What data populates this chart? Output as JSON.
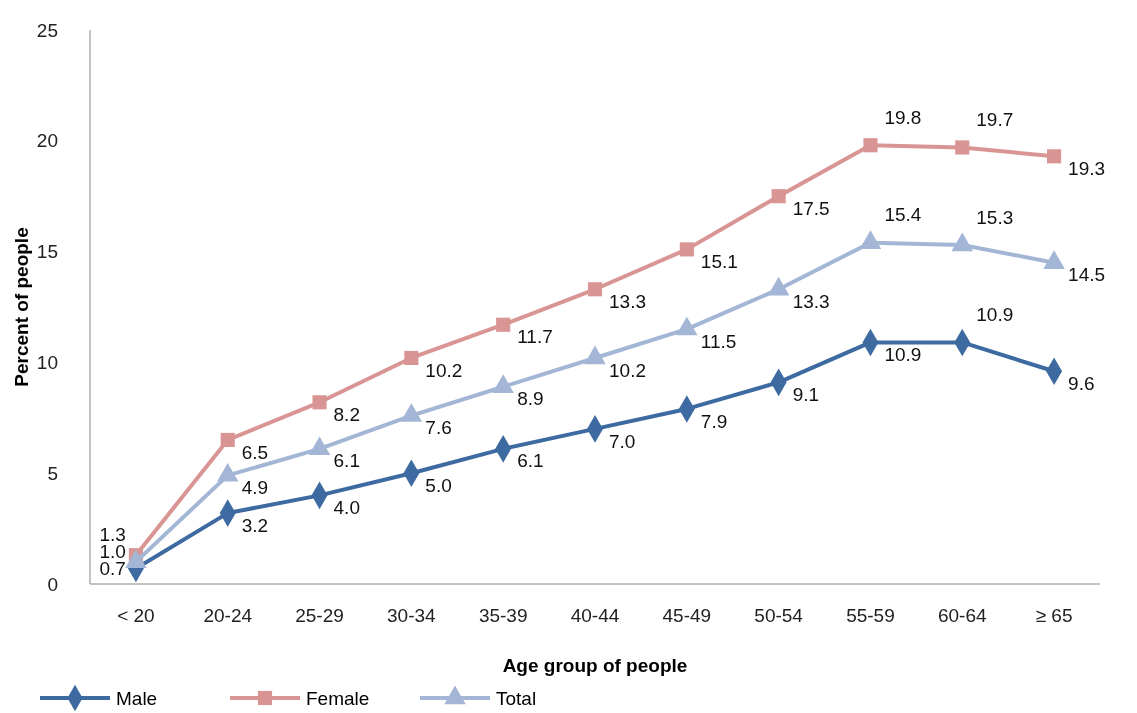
{
  "chart_data": {
    "type": "line",
    "xlabel": "Age group of people",
    "ylabel": "Percent of people",
    "categories": [
      "< 20",
      "20-24",
      "25-29",
      "30-34",
      "35-39",
      "40-44",
      "45-49",
      "50-54",
      "55-59",
      "60-64",
      "≥ 65"
    ],
    "ylim": [
      0,
      25
    ],
    "yticks": [
      0,
      5,
      10,
      15,
      20,
      25
    ],
    "grid": false,
    "legend": "bottom left",
    "line_style": "solid",
    "series": [
      {
        "name": "Male",
        "color": "#3d6aa0",
        "marker": "diamond",
        "values": [
          0.7,
          3.2,
          4.0,
          5.0,
          6.1,
          7.0,
          7.9,
          9.1,
          10.9,
          10.9,
          9.6
        ],
        "value_labels": [
          "0.7",
          "3.2",
          "4.0",
          "5.0",
          "6.1",
          "7.0",
          "7.9",
          "9.1",
          "10.9",
          "10.9",
          "9.6"
        ]
      },
      {
        "name": "Female",
        "color": "#d99594",
        "marker": "square",
        "values": [
          1.3,
          6.5,
          8.2,
          10.2,
          11.7,
          13.3,
          15.1,
          17.5,
          19.8,
          19.7,
          19.3
        ],
        "value_labels": [
          "1.3",
          "6.5",
          "8.2",
          "10.2",
          "11.7",
          "13.3",
          "15.1",
          "17.5",
          "19.8",
          "19.7",
          "19.3"
        ]
      },
      {
        "name": "Total",
        "color": "#a3b6d6",
        "marker": "triangle",
        "values": [
          1.0,
          4.9,
          6.1,
          7.6,
          8.9,
          10.2,
          11.5,
          13.3,
          15.4,
          15.3,
          14.5
        ],
        "value_labels": [
          "1.0",
          "4.9",
          "6.1",
          "7.6",
          "8.9",
          "10.2",
          "11.5",
          "13.3",
          "15.4",
          "15.3",
          "14.5"
        ]
      }
    ]
  }
}
